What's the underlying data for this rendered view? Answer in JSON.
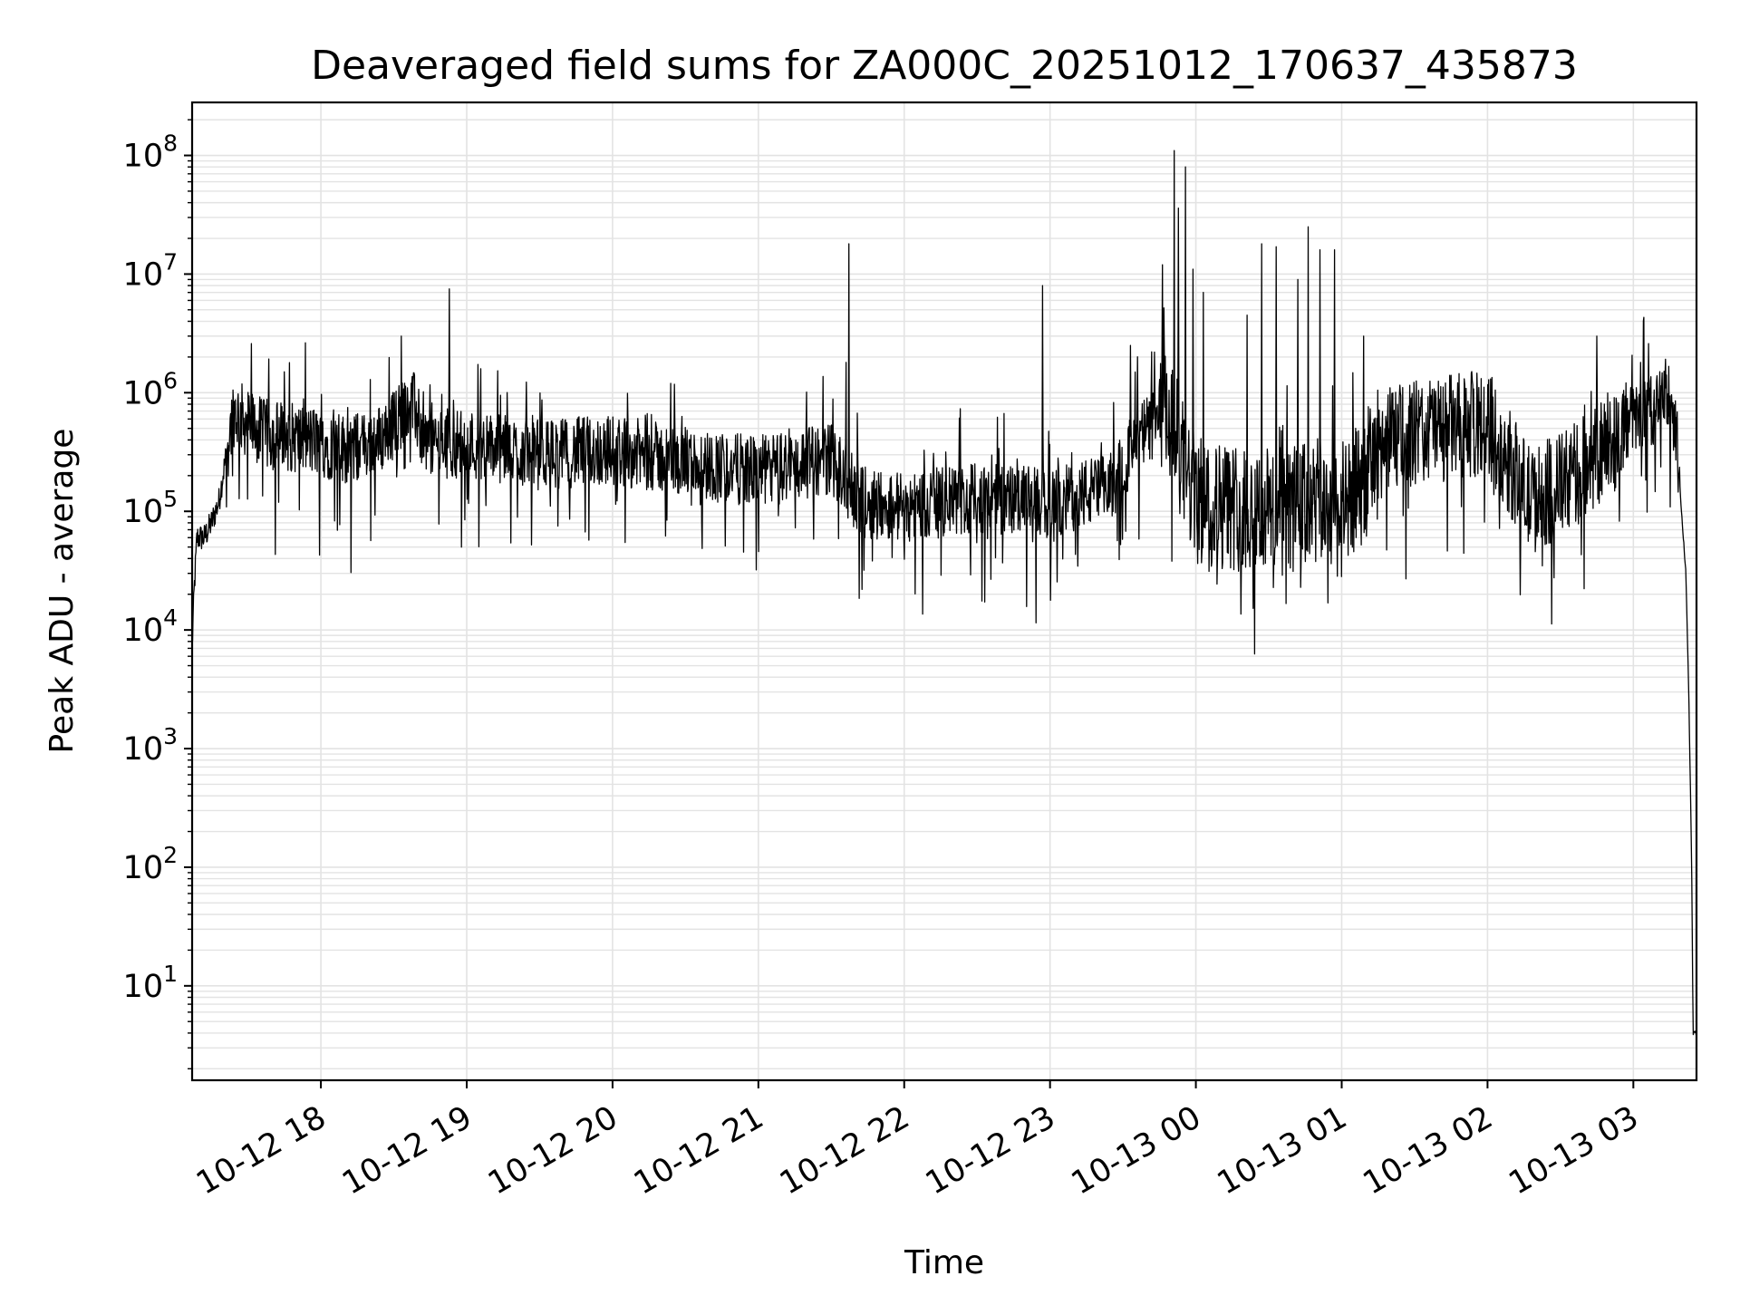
{
  "chart_data": {
    "type": "line",
    "title": "Deaveraged field sums for ZA000C_20251012_170637_435873",
    "xlabel": "Time",
    "ylabel": "Peak ADU - average",
    "yscale": "log",
    "ylim": [
      1.6,
      280000000
    ],
    "xlim_hours": [
      17.117,
      27.433
    ],
    "grid": true,
    "line_color": "#000000",
    "x_ticks": [
      {
        "label": "10-12 18",
        "hour": 18
      },
      {
        "label": "10-12 19",
        "hour": 19
      },
      {
        "label": "10-12 20",
        "hour": 20
      },
      {
        "label": "10-12 21",
        "hour": 21
      },
      {
        "label": "10-12 22",
        "hour": 22
      },
      {
        "label": "10-12 23",
        "hour": 23
      },
      {
        "label": "10-13 00",
        "hour": 24
      },
      {
        "label": "10-13 01",
        "hour": 25
      },
      {
        "label": "10-13 02",
        "hour": 26
      },
      {
        "label": "10-13 03",
        "hour": 27
      }
    ],
    "y_ticks": [
      {
        "base": "10",
        "exp": "1",
        "value": 10
      },
      {
        "base": "10",
        "exp": "2",
        "value": 100
      },
      {
        "base": "10",
        "exp": "3",
        "value": 1000
      },
      {
        "base": "10",
        "exp": "4",
        "value": 10000
      },
      {
        "base": "10",
        "exp": "5",
        "value": 100000
      },
      {
        "base": "10",
        "exp": "6",
        "value": 1000000
      },
      {
        "base": "10",
        "exp": "7",
        "value": 10000000
      },
      {
        "base": "10",
        "exp": "8",
        "value": 100000000
      }
    ],
    "series": [
      {
        "name": "Peak ADU - average",
        "x_hours": [
          17.117,
          17.13,
          17.15,
          17.2,
          17.25,
          17.3,
          17.35,
          17.4,
          17.5,
          17.6,
          17.8,
          18.0,
          18.2,
          18.4,
          18.55,
          18.6,
          18.65,
          18.7,
          18.75,
          18.8,
          19.0,
          19.5,
          20.0,
          20.5,
          20.8,
          21.0,
          21.3,
          21.5,
          21.7,
          22.0,
          22.3,
          22.6,
          22.9,
          23.0,
          23.2,
          23.4,
          23.6,
          23.8,
          24.0,
          24.3,
          24.6,
          24.9,
          25.0,
          25.3,
          25.6,
          26.0,
          26.3,
          26.6,
          26.9,
          27.0,
          27.2,
          27.25,
          27.3,
          27.33,
          27.36,
          27.38,
          27.4,
          27.41,
          27.42,
          27.433
        ],
        "values": [
          7000,
          20000,
          60000,
          60000,
          80000,
          120000,
          300000,
          700000,
          550000,
          450000,
          420000,
          380000,
          330000,
          400000,
          650000,
          900000,
          700000,
          420000,
          380000,
          380000,
          370000,
          300000,
          330000,
          260000,
          230000,
          220000,
          250000,
          280000,
          120000,
          110000,
          120000,
          130000,
          120000,
          110000,
          140000,
          150000,
          400000,
          700000,
          120000,
          110000,
          100000,
          120000,
          90000,
          400000,
          500000,
          550000,
          120000,
          200000,
          450000,
          600000,
          800000,
          1000000,
          400000,
          100000,
          30000,
          3000,
          100,
          4,
          4,
          4
        ]
      }
    ],
    "spikes": [
      {
        "hour": 17.75,
        "value": 1500000
      },
      {
        "hour": 18.55,
        "value": 3000000
      },
      {
        "hour": 18.88,
        "value": 7500000
      },
      {
        "hour": 21.6,
        "value": 1800000
      },
      {
        "hour": 21.62,
        "value": 18000000
      },
      {
        "hour": 22.95,
        "value": 8000000
      },
      {
        "hour": 23.55,
        "value": 2500000
      },
      {
        "hour": 23.77,
        "value": 12000000
      },
      {
        "hour": 23.85,
        "value": 110000000
      },
      {
        "hour": 23.88,
        "value": 36000000
      },
      {
        "hour": 23.93,
        "value": 80000000
      },
      {
        "hour": 23.98,
        "value": 11000000
      },
      {
        "hour": 24.05,
        "value": 7000000
      },
      {
        "hour": 24.35,
        "value": 4500000
      },
      {
        "hour": 24.45,
        "value": 18000000
      },
      {
        "hour": 24.55,
        "value": 17000000
      },
      {
        "hour": 24.7,
        "value": 9000000
      },
      {
        "hour": 24.77,
        "value": 25000000
      },
      {
        "hour": 24.85,
        "value": 16000000
      },
      {
        "hour": 24.95,
        "value": 16000000
      },
      {
        "hour": 25.15,
        "value": 3000000
      },
      {
        "hour": 26.75,
        "value": 3000000
      },
      {
        "hour": 27.05,
        "value": 1800000
      }
    ]
  }
}
